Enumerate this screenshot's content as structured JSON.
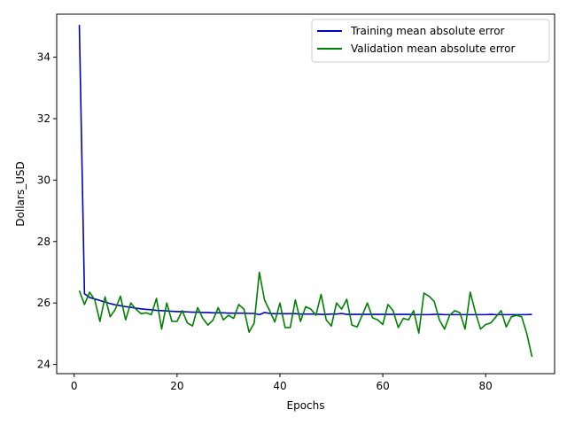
{
  "chart_data": {
    "type": "line",
    "title": "",
    "xlabel": "Epochs",
    "ylabel": "Dollars_USD",
    "xlim": [
      -3.4,
      93.4
    ],
    "ylim": [
      23.7,
      35.4
    ],
    "x_ticks": [
      0,
      20,
      40,
      60,
      80
    ],
    "y_ticks": [
      24,
      26,
      28,
      30,
      32,
      34
    ],
    "grid": false,
    "legend_position": "top-right",
    "series": [
      {
        "name": "Training mean absolute error",
        "color": "#0000bf",
        "x": [
          1,
          2,
          3,
          4,
          5,
          6,
          7,
          8,
          9,
          10,
          11,
          12,
          13,
          14,
          15,
          16,
          17,
          18,
          19,
          20,
          21,
          22,
          23,
          24,
          25,
          26,
          27,
          28,
          29,
          30,
          31,
          32,
          33,
          34,
          35,
          36,
          37,
          38,
          39,
          40,
          41,
          42,
          43,
          44,
          45,
          46,
          47,
          48,
          49,
          50,
          51,
          52,
          53,
          54,
          55,
          56,
          57,
          58,
          59,
          60,
          61,
          62,
          63,
          64,
          65,
          66,
          67,
          68,
          69,
          70,
          71,
          72,
          73,
          74,
          75,
          76,
          77,
          78,
          79,
          80,
          81,
          82,
          83,
          84,
          85,
          86,
          87,
          88,
          89
        ],
        "values": [
          35.05,
          26.3,
          26.18,
          26.13,
          26.08,
          26.03,
          25.98,
          25.94,
          25.91,
          25.88,
          25.86,
          25.83,
          25.81,
          25.79,
          25.78,
          25.76,
          25.75,
          25.74,
          25.73,
          25.72,
          25.72,
          25.71,
          25.7,
          25.7,
          25.69,
          25.69,
          25.68,
          25.68,
          25.68,
          25.67,
          25.67,
          25.67,
          25.67,
          25.66,
          25.66,
          25.62,
          25.69,
          25.66,
          25.65,
          25.65,
          25.65,
          25.65,
          25.65,
          25.64,
          25.64,
          25.64,
          25.64,
          25.63,
          25.63,
          25.64,
          25.64,
          25.66,
          25.63,
          25.63,
          25.63,
          25.63,
          25.63,
          25.63,
          25.63,
          25.63,
          25.63,
          25.63,
          25.63,
          25.63,
          25.63,
          25.62,
          25.62,
          25.62,
          25.62,
          25.63,
          25.63,
          25.62,
          25.62,
          25.62,
          25.62,
          25.62,
          25.62,
          25.62,
          25.62,
          25.62,
          25.63,
          25.62,
          25.62,
          25.62,
          25.62,
          25.62,
          25.62,
          25.62,
          25.63
        ]
      },
      {
        "name": "Validation mean absolute error",
        "color": "#008000",
        "x": [
          1,
          2,
          3,
          4,
          5,
          6,
          7,
          8,
          9,
          10,
          11,
          12,
          13,
          14,
          15,
          16,
          17,
          18,
          19,
          20,
          21,
          22,
          23,
          24,
          25,
          26,
          27,
          28,
          29,
          30,
          31,
          32,
          33,
          34,
          35,
          36,
          37,
          38,
          39,
          40,
          41,
          42,
          43,
          44,
          45,
          46,
          47,
          48,
          49,
          50,
          51,
          52,
          53,
          54,
          55,
          56,
          57,
          58,
          59,
          60,
          61,
          62,
          63,
          64,
          65,
          66,
          67,
          68,
          69,
          70,
          71,
          72,
          73,
          74,
          75,
          76,
          77,
          78,
          79,
          80,
          81,
          82,
          83,
          84,
          85,
          86,
          87,
          88,
          89
        ],
        "values": [
          26.4,
          25.95,
          26.35,
          26.1,
          25.4,
          26.2,
          25.55,
          25.8,
          26.22,
          25.45,
          26.0,
          25.8,
          25.65,
          25.68,
          25.62,
          26.15,
          25.15,
          26.0,
          25.4,
          25.4,
          25.75,
          25.35,
          25.25,
          25.85,
          25.5,
          25.28,
          25.45,
          25.85,
          25.45,
          25.6,
          25.5,
          25.95,
          25.8,
          25.05,
          25.35,
          27.0,
          26.1,
          25.75,
          25.38,
          26.0,
          25.2,
          25.2,
          26.1,
          25.4,
          25.88,
          25.8,
          25.6,
          26.28,
          25.45,
          25.25,
          26.0,
          25.8,
          26.12,
          25.28,
          25.22,
          25.6,
          26.0,
          25.52,
          25.45,
          25.3,
          25.95,
          25.75,
          25.2,
          25.5,
          25.45,
          25.75,
          25.02,
          26.32,
          26.22,
          26.05,
          25.45,
          25.15,
          25.6,
          25.75,
          25.68,
          25.15,
          26.35,
          25.7,
          25.15,
          25.3,
          25.35,
          25.55,
          25.75,
          25.22,
          25.55,
          25.6,
          25.55,
          25.0,
          24.25
        ]
      }
    ]
  }
}
